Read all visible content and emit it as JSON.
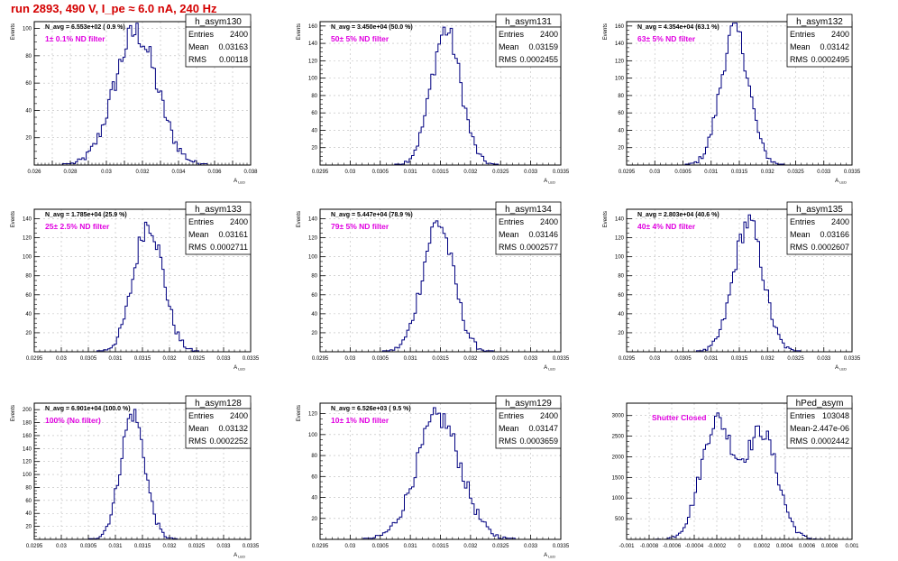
{
  "page": {
    "title": "run 2893,   490 V, I_pe ≈ 6.0 nA, 240 Hz"
  },
  "colors": {
    "histogram": "#000080",
    "annotation": "#e000e0",
    "title": "#d40000",
    "grid": "#bbbbbb"
  },
  "chart_data": [
    {
      "type": "bar",
      "name": "h_asym130",
      "navg": "N_avg = 6.553e+02 ( 0.9 %)",
      "filter": "1± 0.1% ND filter",
      "stats": [
        {
          "label": "Entries",
          "value": "2400"
        },
        {
          "label": "Mean",
          "value": "0.03163"
        },
        {
          "label": "RMS",
          "value": "0.00118"
        }
      ],
      "ylabel": "Events",
      "xlabel": "A_LED",
      "xlim": [
        0.026,
        0.038
      ],
      "ylim": [
        0,
        105
      ],
      "xticks": [
        0.026,
        0.027,
        0.028,
        0.029,
        0.03,
        0.031,
        0.032,
        0.033,
        0.034,
        0.035,
        0.036,
        0.037,
        0.038
      ],
      "xticklabels": [
        "0.026",
        "",
        "0.028",
        "",
        "0.03",
        "",
        "0.032",
        "",
        "0.034",
        "",
        "0.036",
        "",
        "0.038"
      ],
      "yticks": [
        0,
        20,
        40,
        60,
        80,
        100
      ],
      "yticklabels": [
        "",
        "20",
        "40",
        "60",
        "80",
        "100"
      ],
      "mean": 0.03163,
      "rms": 0.00118,
      "entries": 2400
    },
    {
      "type": "bar",
      "name": "h_asym131",
      "navg": "N_avg = 3.450e+04 (50.0 %)",
      "filter": "50± 5% ND filter",
      "stats": [
        {
          "label": "Entries",
          "value": "2400"
        },
        {
          "label": "Mean",
          "value": "0.03159"
        },
        {
          "label": "RMS",
          "value": "0.0002455"
        }
      ],
      "ylabel": "Events",
      "xlabel": "A_LED",
      "xlim": [
        0.0295,
        0.0335
      ],
      "ylim": [
        0,
        165
      ],
      "xticks": [
        0.0295,
        0.03,
        0.0305,
        0.031,
        0.0315,
        0.032,
        0.0325,
        0.033,
        0.0335
      ],
      "xticklabels": [
        "0.0295",
        "0.03",
        "0.0305",
        "0.031",
        "0.0315",
        "0.032",
        "0.0325",
        "0.033",
        "0.0335"
      ],
      "yticks": [
        0,
        20,
        40,
        60,
        80,
        100,
        120,
        140,
        160
      ],
      "yticklabels": [
        "",
        "20",
        "40",
        "60",
        "80",
        "100",
        "120",
        "140",
        "160"
      ],
      "mean": 0.03159,
      "rms": 0.0002455,
      "entries": 2400
    },
    {
      "type": "bar",
      "name": "h_asym132",
      "navg": "N_avg = 4.354e+04 (63.1 %)",
      "filter": "63± 5% ND filter",
      "stats": [
        {
          "label": "Entries",
          "value": "2400"
        },
        {
          "label": "Mean",
          "value": "0.03142"
        },
        {
          "label": "RMS",
          "value": "0.0002495"
        }
      ],
      "ylabel": "Events",
      "xlabel": "A_LED",
      "xlim": [
        0.0295,
        0.0335
      ],
      "ylim": [
        0,
        165
      ],
      "xticks": [
        0.0295,
        0.03,
        0.0305,
        0.031,
        0.0315,
        0.032,
        0.0325,
        0.033,
        0.0335
      ],
      "xticklabels": [
        "0.0295",
        "0.03",
        "0.0305",
        "0.031",
        "0.0315",
        "0.032",
        "0.0325",
        "0.033",
        "0.0335"
      ],
      "yticks": [
        0,
        20,
        40,
        60,
        80,
        100,
        120,
        140,
        160
      ],
      "yticklabels": [
        "",
        "20",
        "40",
        "60",
        "80",
        "100",
        "120",
        "140",
        "160"
      ],
      "mean": 0.03142,
      "rms": 0.0002495,
      "entries": 2400
    },
    {
      "type": "bar",
      "name": "h_asym133",
      "navg": "N_avg = 1.785e+04 (25.9 %)",
      "filter": "25± 2.5% ND filter",
      "stats": [
        {
          "label": "Entries",
          "value": "2400"
        },
        {
          "label": "Mean",
          "value": "0.03161"
        },
        {
          "label": "RMS",
          "value": "0.0002711"
        }
      ],
      "ylabel": "Events",
      "xlabel": "A_LED",
      "xlim": [
        0.0295,
        0.0335
      ],
      "ylim": [
        0,
        150
      ],
      "xticks": [
        0.0295,
        0.03,
        0.0305,
        0.031,
        0.0315,
        0.032,
        0.0325,
        0.033,
        0.0335
      ],
      "xticklabels": [
        "0.0295",
        "0.03",
        "0.0305",
        "0.031",
        "0.0315",
        "0.032",
        "0.0325",
        "0.033",
        "0.0335"
      ],
      "yticks": [
        0,
        20,
        40,
        60,
        80,
        100,
        120,
        140
      ],
      "yticklabels": [
        "",
        "20",
        "40",
        "60",
        "80",
        "100",
        "120",
        "140"
      ],
      "mean": 0.03161,
      "rms": 0.0002711,
      "entries": 2400
    },
    {
      "type": "bar",
      "name": "h_asym134",
      "navg": "N_avg = 5.447e+04 (78.9 %)",
      "filter": "79± 5% ND filter",
      "stats": [
        {
          "label": "Entries",
          "value": "2400"
        },
        {
          "label": "Mean",
          "value": "0.03146"
        },
        {
          "label": "RMS",
          "value": "0.0002577"
        }
      ],
      "ylabel": "Events",
      "xlabel": "A_LED",
      "xlim": [
        0.0295,
        0.0335
      ],
      "ylim": [
        0,
        150
      ],
      "xticks": [
        0.0295,
        0.03,
        0.0305,
        0.031,
        0.0315,
        0.032,
        0.0325,
        0.033,
        0.0335
      ],
      "xticklabels": [
        "0.0295",
        "0.03",
        "0.0305",
        "0.031",
        "0.0315",
        "0.032",
        "0.0325",
        "0.033",
        "0.0335"
      ],
      "yticks": [
        0,
        20,
        40,
        60,
        80,
        100,
        120,
        140
      ],
      "yticklabels": [
        "",
        "20",
        "40",
        "60",
        "80",
        "100",
        "120",
        "140"
      ],
      "mean": 0.03146,
      "rms": 0.0002577,
      "entries": 2400
    },
    {
      "type": "bar",
      "name": "h_asym135",
      "navg": "N_avg = 2.803e+04 (40.6 %)",
      "filter": "40± 4% ND filter",
      "stats": [
        {
          "label": "Entries",
          "value": "2400"
        },
        {
          "label": "Mean",
          "value": "0.03166"
        },
        {
          "label": "RMS",
          "value": "0.0002607"
        }
      ],
      "ylabel": "Events",
      "xlabel": "A_LED",
      "xlim": [
        0.0295,
        0.0335
      ],
      "ylim": [
        0,
        150
      ],
      "xticks": [
        0.0295,
        0.03,
        0.0305,
        0.031,
        0.0315,
        0.032,
        0.0325,
        0.033,
        0.0335
      ],
      "xticklabels": [
        "0.0295",
        "0.03",
        "0.0305",
        "0.031",
        "0.0315",
        "0.032",
        "0.0325",
        "0.033",
        "0.0335"
      ],
      "yticks": [
        0,
        20,
        40,
        60,
        80,
        100,
        120,
        140
      ],
      "yticklabels": [
        "",
        "20",
        "40",
        "60",
        "80",
        "100",
        "120",
        "140"
      ],
      "mean": 0.03166,
      "rms": 0.0002607,
      "entries": 2400
    },
    {
      "type": "bar",
      "name": "h_asym128",
      "navg": "N_avg = 6.901e+04 (100.0 %)",
      "filter": "100% (No filter)",
      "stats": [
        {
          "label": "Entries",
          "value": "2400"
        },
        {
          "label": "Mean",
          "value": "0.03132"
        },
        {
          "label": "RMS",
          "value": "0.0002252"
        }
      ],
      "ylabel": "Events",
      "xlabel": "A_LED",
      "xlim": [
        0.0295,
        0.0335
      ],
      "ylim": [
        0,
        210
      ],
      "xticks": [
        0.0295,
        0.03,
        0.0305,
        0.031,
        0.0315,
        0.032,
        0.0325,
        0.033,
        0.0335
      ],
      "xticklabels": [
        "0.0295",
        "0.03",
        "0.0305",
        "0.031",
        "0.0315",
        "0.032",
        "0.0325",
        "0.033",
        "0.0335"
      ],
      "yticks": [
        0,
        20,
        40,
        60,
        80,
        100,
        120,
        140,
        160,
        180,
        200
      ],
      "yticklabels": [
        "",
        "20",
        "40",
        "60",
        "80",
        "100",
        "120",
        "140",
        "160",
        "180",
        "200"
      ],
      "mean": 0.03132,
      "rms": 0.0002252,
      "entries": 2400
    },
    {
      "type": "bar",
      "name": "h_asym129",
      "navg": "N_avg = 6.526e+03 ( 9.5 %)",
      "filter": "10± 1% ND filter",
      "stats": [
        {
          "label": "Entries",
          "value": "2400"
        },
        {
          "label": "Mean",
          "value": "0.03147"
        },
        {
          "label": "RMS",
          "value": "0.0003659"
        }
      ],
      "ylabel": "Events",
      "xlabel": "A_LED",
      "xlim": [
        0.0295,
        0.0335
      ],
      "ylim": [
        0,
        130
      ],
      "xticks": [
        0.0295,
        0.03,
        0.0305,
        0.031,
        0.0315,
        0.032,
        0.0325,
        0.033,
        0.0335
      ],
      "xticklabels": [
        "0.0295",
        "0.03",
        "0.0305",
        "0.031",
        "0.0315",
        "0.032",
        "0.0325",
        "0.033",
        "0.0335"
      ],
      "yticks": [
        0,
        20,
        40,
        60,
        80,
        100,
        120
      ],
      "yticklabels": [
        "",
        "20",
        "40",
        "60",
        "80",
        "100",
        "120"
      ],
      "mean": 0.03147,
      "rms": 0.0003659,
      "entries": 2400
    },
    {
      "type": "bar",
      "name": "hPed_asym",
      "navg": "",
      "filter": "Shutter Closed",
      "stats": [
        {
          "label": "Entries",
          "value": "103048"
        },
        {
          "label": "Mean",
          "value": "-2.447e-06"
        },
        {
          "label": "RMS",
          "value": "0.0002442"
        }
      ],
      "ylabel": "",
      "xlabel": "",
      "xlim": [
        -0.001,
        0.001
      ],
      "ylim": [
        0,
        3300
      ],
      "xticks": [
        -0.001,
        -0.0008,
        -0.0006,
        -0.0004,
        -0.0002,
        0,
        0.0002,
        0.0004,
        0.0006,
        0.0008,
        0.001
      ],
      "xticklabels": [
        "-0.001",
        "-0.0008",
        "-0.0006",
        "-0.0004",
        "-0.0002",
        "0",
        "0.0002",
        "0.0004",
        "0.0006",
        "0.0008",
        "0.001"
      ],
      "yticks": [
        0,
        500,
        1000,
        1500,
        2000,
        2500,
        3000
      ],
      "yticklabels": [
        "",
        "500",
        "1000",
        "1500",
        "2000",
        "2500",
        "3000"
      ],
      "mean": -2.447e-06,
      "rms": 0.0002442,
      "entries": 103048,
      "bimodal": {
        "peaks": [
          -0.0002,
          0.0002
        ],
        "heights": [
          3050,
          2750
        ],
        "dip": 2050
      }
    }
  ]
}
